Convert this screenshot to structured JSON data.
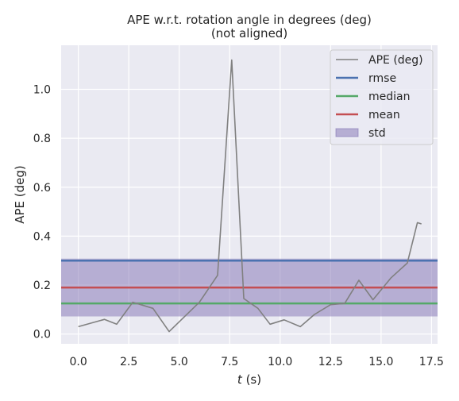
{
  "chart_data": {
    "type": "line",
    "title": "APE w.r.t. rotation angle in degrees (deg)",
    "subtitle": "(not aligned)",
    "xlabel_italic": "t",
    "xlabel_rest": " (s)",
    "ylabel": "APE (deg)",
    "xlim": [
      -0.85,
      17.8
    ],
    "ylim": [
      -0.04,
      1.18
    ],
    "xticks": [
      0.0,
      2.5,
      5.0,
      7.5,
      10.0,
      12.5,
      15.0,
      17.5
    ],
    "xtick_labels": [
      "0.0",
      "2.5",
      "5.0",
      "7.5",
      "10.0",
      "12.5",
      "15.0",
      "17.5"
    ],
    "yticks": [
      0.0,
      0.2,
      0.4,
      0.6,
      0.8,
      1.0
    ],
    "ytick_labels": [
      "0.0",
      "0.2",
      "0.4",
      "0.6",
      "0.8",
      "1.0"
    ],
    "grid": true,
    "legend_position": "top-right",
    "series": [
      {
        "name": "APE (deg)",
        "color": "#808080",
        "x": [
          0.0,
          1.3,
          1.9,
          2.7,
          3.7,
          4.5,
          6.0,
          6.9,
          7.6,
          8.2,
          8.9,
          9.5,
          10.2,
          11.0,
          11.7,
          12.5,
          13.2,
          13.9,
          14.6,
          15.5,
          16.3,
          16.8,
          17.0
        ],
        "values": [
          0.03,
          0.06,
          0.04,
          0.13,
          0.105,
          0.01,
          0.13,
          0.24,
          1.12,
          0.145,
          0.105,
          0.04,
          0.058,
          0.03,
          0.08,
          0.12,
          0.125,
          0.22,
          0.14,
          0.23,
          0.29,
          0.455,
          0.45
        ]
      }
    ],
    "stats": {
      "rmse": 0.3,
      "median": 0.125,
      "mean": 0.19,
      "std": 0.118
    },
    "legend": [
      {
        "label": "APE (deg)",
        "kind": "line",
        "color": "#808080"
      },
      {
        "label": "rmse",
        "kind": "line",
        "color": "#4c72b0"
      },
      {
        "label": "median",
        "kind": "line",
        "color": "#55a868"
      },
      {
        "label": "mean",
        "kind": "line",
        "color": "#c44e52"
      },
      {
        "label": "std",
        "kind": "patch",
        "color": "#8172b3"
      }
    ],
    "colors": {
      "background": "#eaeaf2",
      "grid": "#ffffff",
      "ape": "#808080",
      "rmse": "#4c72b0",
      "median": "#55a868",
      "mean": "#c44e52",
      "std": "#8172b3"
    }
  }
}
